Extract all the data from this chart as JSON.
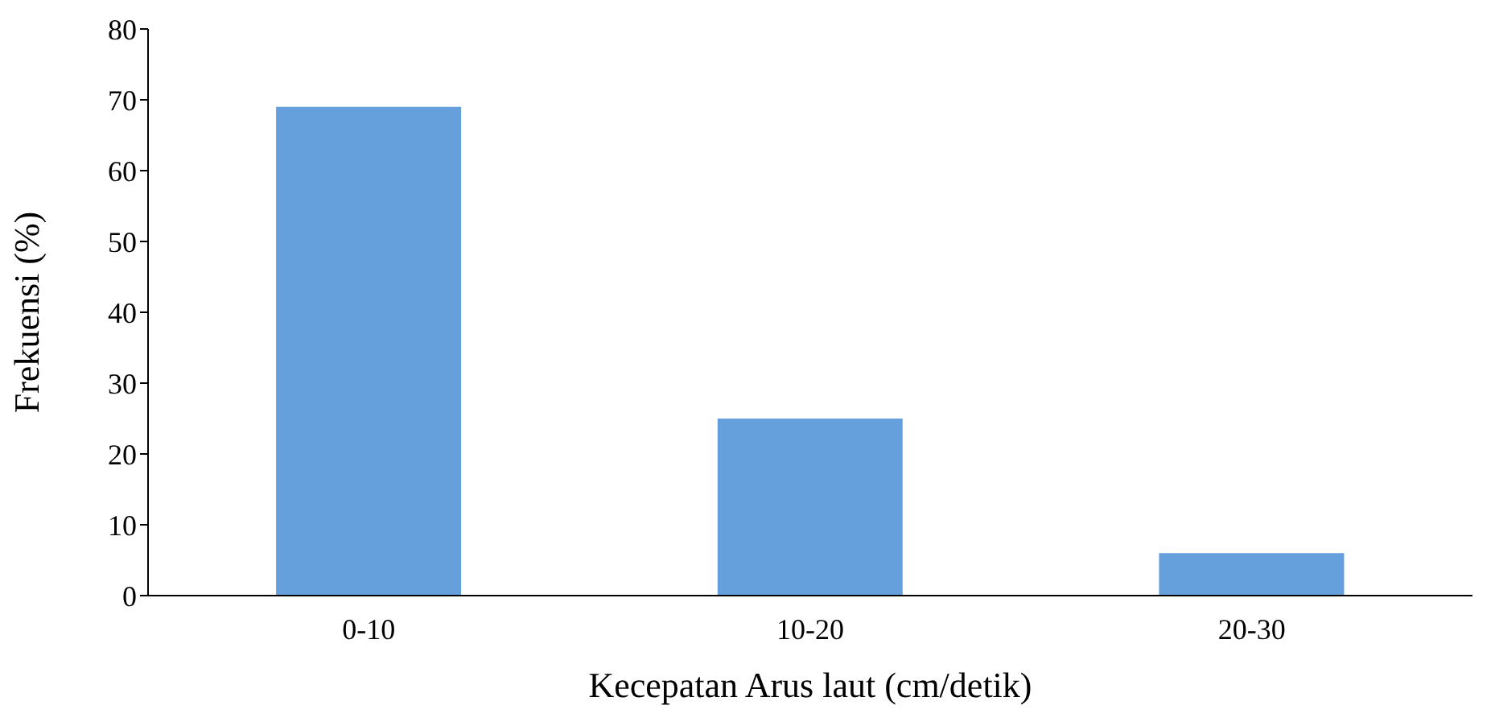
{
  "chart_data": {
    "type": "bar",
    "categories": [
      "0-10",
      "10-20",
      "20-30"
    ],
    "values": [
      69,
      25,
      6
    ],
    "color": "#659fdc",
    "xlabel": "Kecepatan Arus laut (cm/detik)",
    "ylabel": "Frekuensi (%)",
    "ylim": [
      0,
      80
    ],
    "yticks": [
      0,
      10,
      20,
      30,
      40,
      50,
      60,
      70,
      80
    ],
    "grid": false
  }
}
